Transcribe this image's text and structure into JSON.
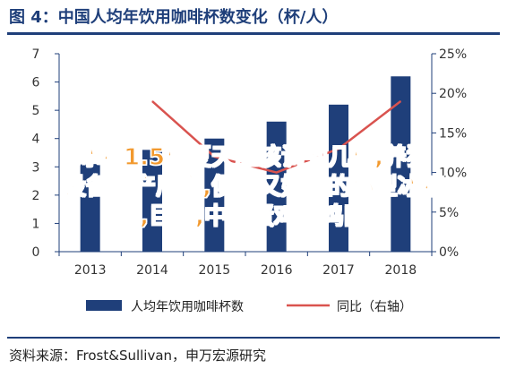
{
  "title": "图 4：中国人均年饮用咖啡杯数变化（杯/人）",
  "overlay_lines": [
    "冰箱1.5档夏天应该调到几档,养猪",
    "设备生产厂家,便宜又好用的小型冰箱",
    ",巨猪,中国蛋鸡肉鸡网"
  ],
  "source": "资料来源：Frost&Sullivan，申万宏源研究",
  "colors": {
    "bar": "#1f3f7a",
    "line": "#d9534f",
    "axis": "#1f3f7a",
    "title": "#1f3f7a"
  },
  "chart_data": {
    "type": "bar",
    "categories": [
      "2013",
      "2014",
      "2015",
      "2016",
      "2017",
      "2018"
    ],
    "series": [
      {
        "name": "人均年饮用咖啡杯数",
        "type": "bar",
        "axis": "left",
        "values": [
          3.1,
          3.6,
          4.0,
          4.6,
          5.2,
          6.2
        ]
      },
      {
        "name": "同比（右轴）",
        "type": "line",
        "axis": "right",
        "values": [
          null,
          19,
          12,
          10,
          13,
          19
        ]
      }
    ],
    "ylim_left": [
      0,
      7
    ],
    "yticks_left": [
      "0",
      "1",
      "2",
      "3",
      "4",
      "5",
      "6",
      "7"
    ],
    "ylim_right": [
      0,
      25
    ],
    "yticks_right": [
      "0%",
      "5%",
      "10%",
      "15%",
      "20%",
      "25%"
    ],
    "legend_position": "bottom"
  }
}
